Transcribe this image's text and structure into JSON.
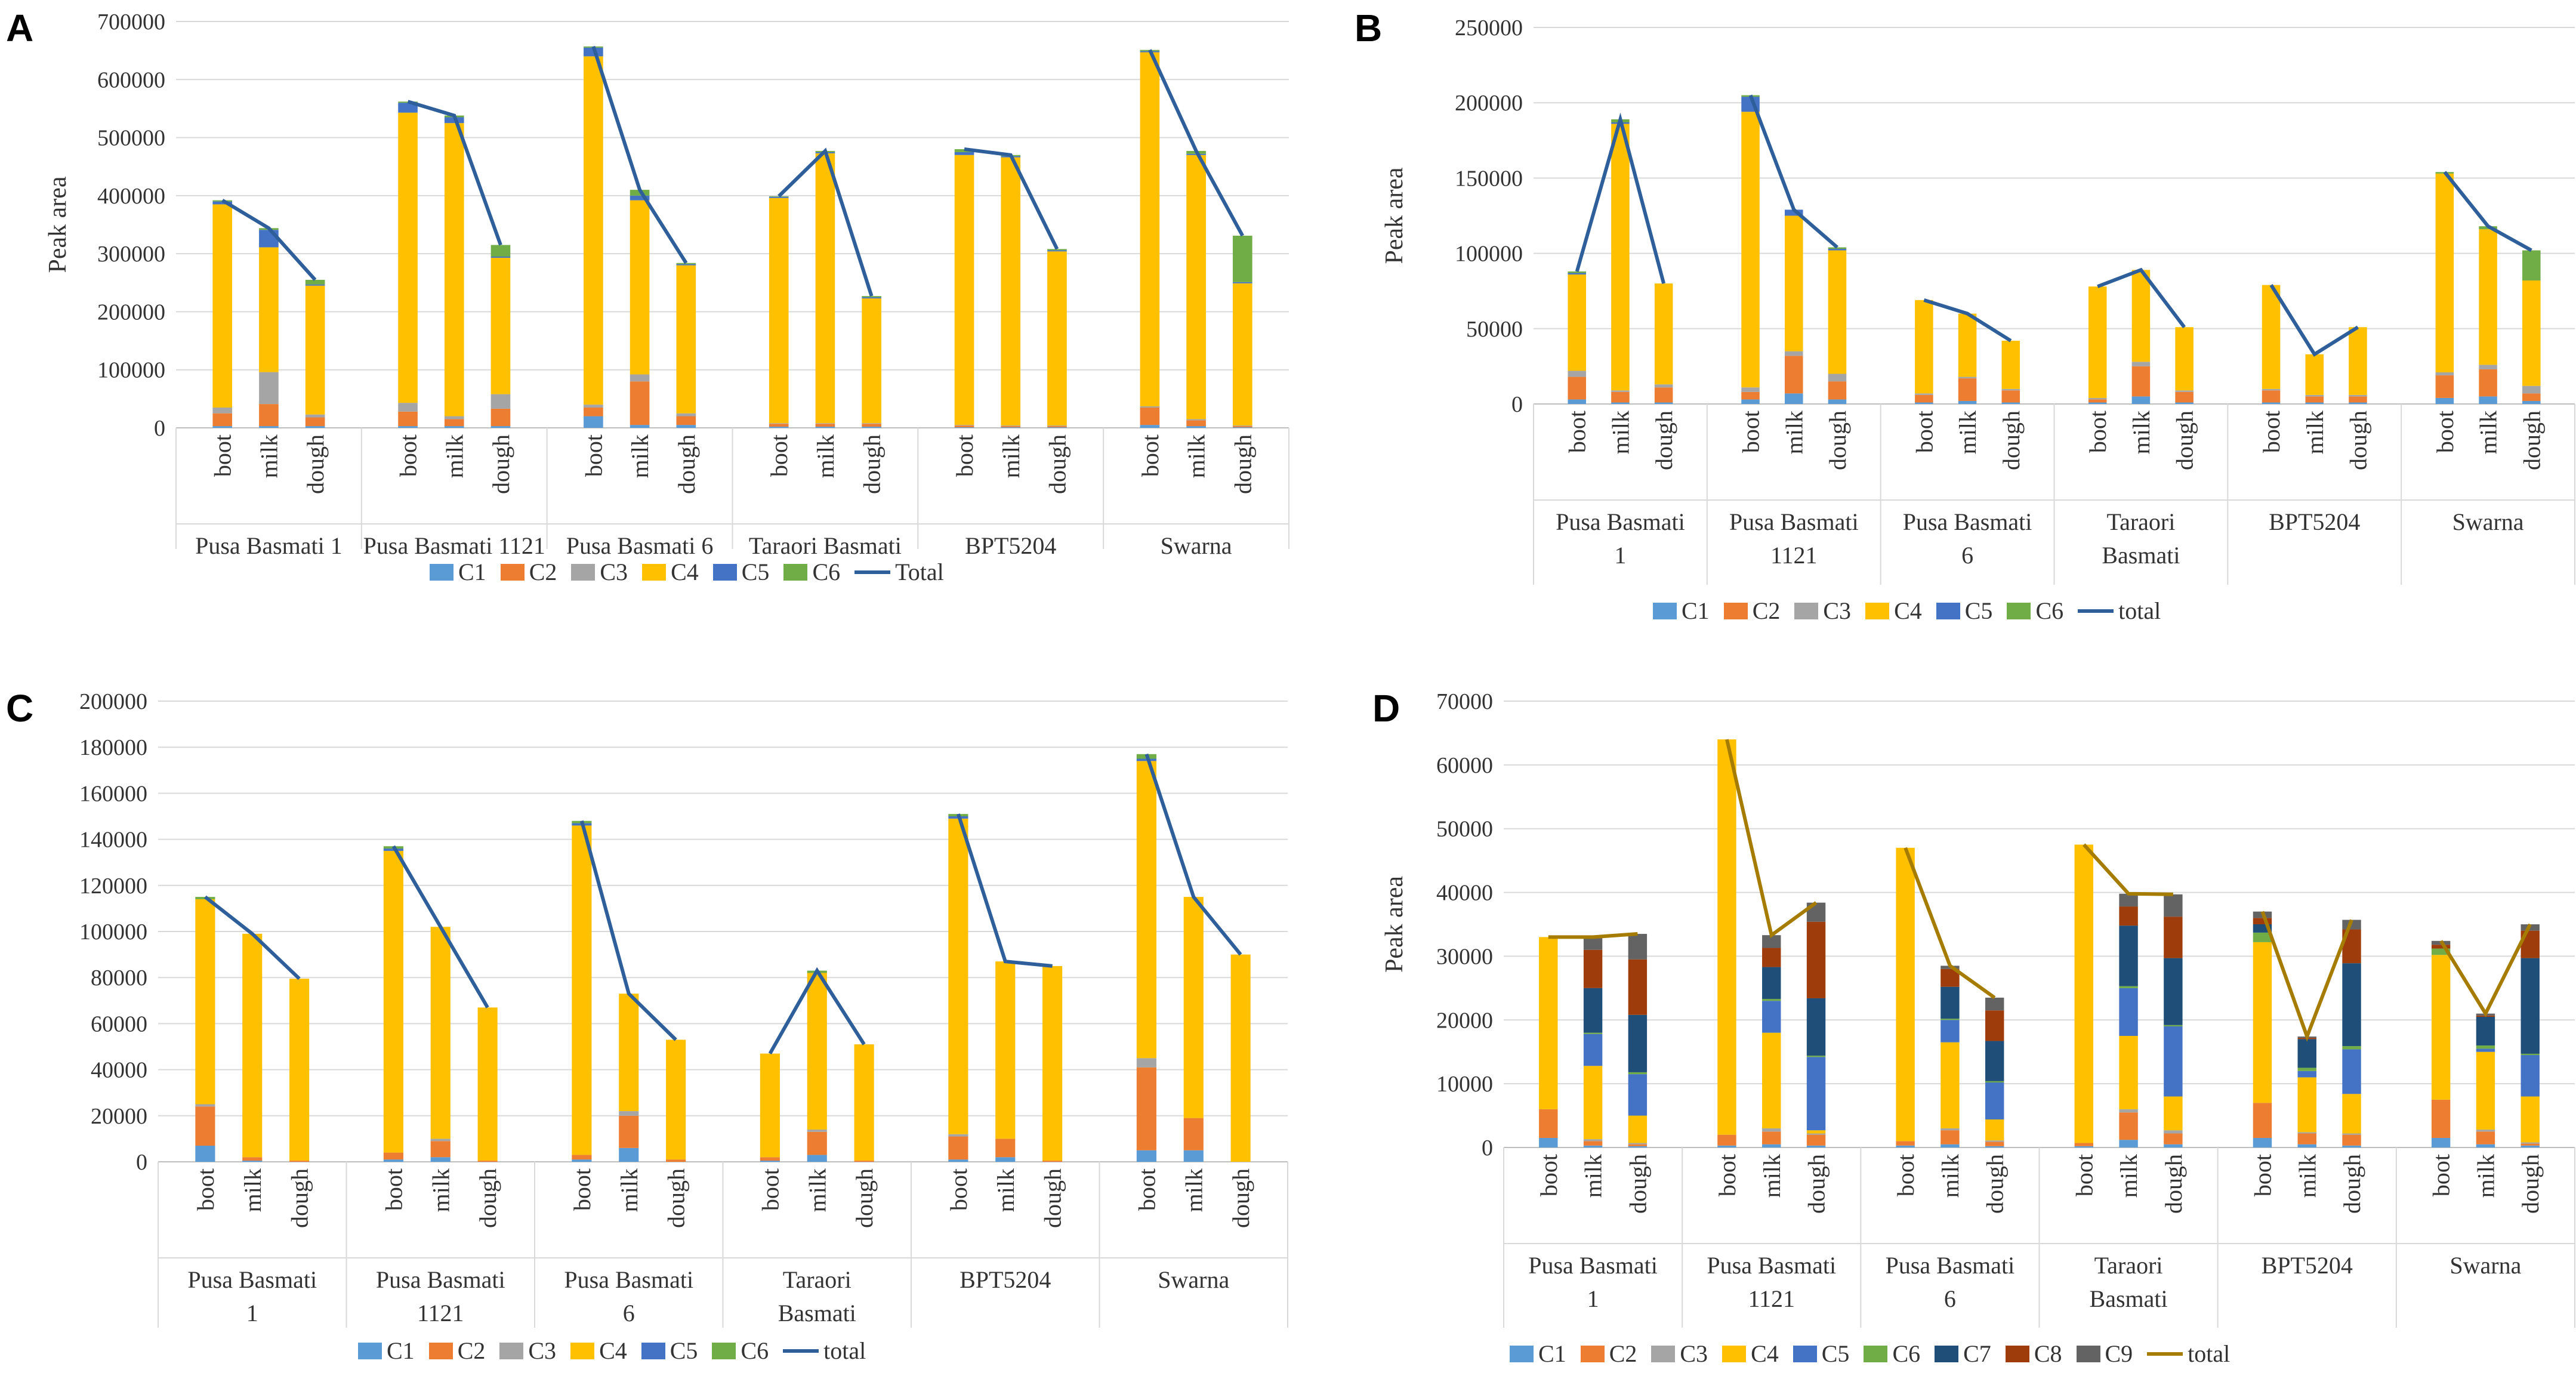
{
  "colors": {
    "C1": "#5b9bd5",
    "C2": "#ed7d31",
    "C3": "#a5a5a5",
    "C4": "#ffc000",
    "C5": "#4472c4",
    "C6": "#70ad47",
    "C7": "#1f4e79",
    "C8": "#9e3c0c",
    "C9": "#636363",
    "total_blue": "#2e5f9a",
    "total_gold": "#a67c00"
  },
  "chart_data": [
    {
      "panel": "A",
      "type": "bar",
      "stacked": true,
      "ylabel": "Peak area",
      "ylim": [
        0,
        700000
      ],
      "ystep": 100000,
      "stages": [
        "boot",
        "milk",
        "dough"
      ],
      "groups": [
        "Pusa Basmati 1",
        "Pusa Basmati 1121",
        "Pusa Basmati 6",
        "Taraori Basmati",
        "BPT5204",
        "Swarna"
      ],
      "total_label": "Total",
      "total_color_key": "total_blue",
      "series": [
        {
          "name": "C1",
          "values": [
            [
              3000,
              3000,
              3000
            ],
            [
              3000,
              3000,
              3000
            ],
            [
              20000,
              5000,
              5000
            ],
            [
              2000,
              2000,
              2000
            ],
            [
              1000,
              1000,
              1000
            ],
            [
              5000,
              3000,
              1000
            ]
          ]
        },
        {
          "name": "C2",
          "values": [
            [
              22000,
              38000,
              15000
            ],
            [
              25000,
              12000,
              30000
            ],
            [
              15000,
              75000,
              15000
            ],
            [
              5000,
              5000,
              5000
            ],
            [
              3000,
              2000,
              2000
            ],
            [
              30000,
              10000,
              2000
            ]
          ]
        },
        {
          "name": "C3",
          "values": [
            [
              10000,
              55000,
              5000
            ],
            [
              15000,
              5000,
              25000
            ],
            [
              5000,
              12000,
              5000
            ],
            [
              1000,
              1000,
              1000
            ],
            [
              1000,
              1000,
              1000
            ],
            [
              2000,
              2000,
              1000
            ]
          ]
        },
        {
          "name": "C4",
          "values": [
            [
              350000,
              215000,
              222000
            ],
            [
              500000,
              505000,
              235000
            ],
            [
              600000,
              300000,
              255000
            ],
            [
              388000,
              465000,
              215000
            ],
            [
              465000,
              462000,
              300000
            ],
            [
              610000,
              455000,
              245000
            ]
          ]
        },
        {
          "name": "C5",
          "values": [
            [
              5000,
              30000,
              2000
            ],
            [
              17000,
              10000,
              2000
            ],
            [
              15000,
              8000,
              2000
            ],
            [
              2000,
              2000,
              2000
            ],
            [
              5000,
              2000,
              2000
            ],
            [
              2000,
              2000,
              2000
            ]
          ]
        },
        {
          "name": "C6",
          "values": [
            [
              2000,
              3000,
              8000
            ],
            [
              2000,
              3000,
              20000
            ],
            [
              2000,
              10000,
              2000
            ],
            [
              1000,
              2000,
              2000
            ],
            [
              5000,
              2000,
              2000
            ],
            [
              2000,
              5000,
              80000
            ]
          ]
        }
      ]
    },
    {
      "panel": "B",
      "type": "bar",
      "stacked": true,
      "ylabel": "Peak area",
      "ylim": [
        0,
        250000
      ],
      "ystep": 50000,
      "stages": [
        "boot",
        "milk",
        "dough"
      ],
      "groups": [
        "Pusa Basmati 1",
        "Pusa Basmati 1121",
        "Pusa Basmati 6",
        "Taraori Basmati",
        "BPT5204",
        "Swarna"
      ],
      "total_label": "total",
      "total_color_key": "total_blue",
      "series": [
        {
          "name": "C1",
          "values": [
            [
              3000,
              1000,
              1000
            ],
            [
              3000,
              7000,
              3000
            ],
            [
              1000,
              2000,
              1000
            ],
            [
              1000,
              5000,
              1000
            ],
            [
              1000,
              1000,
              1000
            ],
            [
              4000,
              5000,
              2000
            ]
          ]
        },
        {
          "name": "C2",
          "values": [
            [
              15000,
              7000,
              10000
            ],
            [
              5000,
              25000,
              12000
            ],
            [
              5000,
              15000,
              8000
            ],
            [
              2000,
              20000,
              7000
            ],
            [
              8000,
              4000,
              4000
            ],
            [
              15000,
              18000,
              5000
            ]
          ]
        },
        {
          "name": "C3",
          "values": [
            [
              4000,
              1000,
              2000
            ],
            [
              3000,
              3000,
              5000
            ],
            [
              1000,
              1000,
              1000
            ],
            [
              1000,
              3000,
              1000
            ],
            [
              1000,
              1000,
              1000
            ],
            [
              2000,
              3000,
              5000
            ]
          ]
        },
        {
          "name": "C4",
          "values": [
            [
              64000,
              177000,
              67000
            ],
            [
              183000,
              90000,
              82000
            ],
            [
              62000,
              42000,
              32000
            ],
            [
              74000,
              61000,
              42000
            ],
            [
              69000,
              27000,
              45000
            ],
            [
              132000,
              90000,
              70000
            ]
          ]
        },
        {
          "name": "C5",
          "values": [
            [
              1000,
              1000,
              0
            ],
            [
              10000,
              4000,
              1000
            ],
            [
              0,
              0,
              0
            ],
            [
              0,
              0,
              0
            ],
            [
              0,
              0,
              0
            ],
            [
              0,
              0,
              0
            ]
          ]
        },
        {
          "name": "C6",
          "values": [
            [
              1000,
              2000,
              0
            ],
            [
              1000,
              0,
              1000
            ],
            [
              0,
              0,
              0
            ],
            [
              0,
              0,
              0
            ],
            [
              0,
              0,
              0
            ],
            [
              1000,
              2000,
              20000
            ]
          ]
        }
      ]
    },
    {
      "panel": "C",
      "type": "bar",
      "stacked": true,
      "ylabel": "",
      "ylim": [
        0,
        200000
      ],
      "ystep": 20000,
      "stages": [
        "boot",
        "milk",
        "dough"
      ],
      "groups": [
        "Pusa Basmati 1",
        "Pusa Basmati 1121",
        "Pusa Basmati 6",
        "Taraori Basmati",
        "BPT5204",
        "Swarna"
      ],
      "total_label": "total",
      "total_color_key": "total_blue",
      "series": [
        {
          "name": "C1",
          "values": [
            [
              7000,
              500,
              0
            ],
            [
              1000,
              2000,
              0
            ],
            [
              1000,
              6000,
              0
            ],
            [
              500,
              3000,
              0
            ],
            [
              1000,
              2000,
              0
            ],
            [
              5000,
              5000,
              0
            ]
          ]
        },
        {
          "name": "C2",
          "values": [
            [
              17000,
              1500,
              500
            ],
            [
              3000,
              7000,
              500
            ],
            [
              2000,
              14000,
              1000
            ],
            [
              1500,
              10000,
              500
            ],
            [
              10000,
              8000,
              500
            ],
            [
              36000,
              14000,
              0
            ]
          ]
        },
        {
          "name": "C3",
          "values": [
            [
              1000,
              0,
              0
            ],
            [
              0,
              1000,
              0
            ],
            [
              0,
              2000,
              0
            ],
            [
              0,
              1000,
              0
            ],
            [
              1000,
              0,
              0
            ],
            [
              4000,
              0,
              0
            ]
          ]
        },
        {
          "name": "C4",
          "values": [
            [
              89000,
              97000,
              79000
            ],
            [
              131000,
              92000,
              66500
            ],
            [
              143000,
              51000,
              52000
            ],
            [
              45000,
              68000,
              50500
            ],
            [
              137000,
              77000,
              84500
            ],
            [
              129000,
              96000,
              90000
            ]
          ]
        },
        {
          "name": "C5",
          "values": [
            [
              0,
              0,
              0
            ],
            [
              1000,
              0,
              0
            ],
            [
              1000,
              0,
              0
            ],
            [
              0,
              0,
              0
            ],
            [
              1000,
              0,
              0
            ],
            [
              1000,
              0,
              0
            ]
          ]
        },
        {
          "name": "C6",
          "values": [
            [
              1000,
              0,
              0
            ],
            [
              1000,
              0,
              0
            ],
            [
              1000,
              0,
              0
            ],
            [
              0,
              1000,
              0
            ],
            [
              1000,
              0,
              0
            ],
            [
              2000,
              0,
              0
            ]
          ]
        }
      ]
    },
    {
      "panel": "D",
      "type": "bar",
      "stacked": true,
      "ylabel": "Peak area",
      "ylim": [
        0,
        70000
      ],
      "ystep": 10000,
      "stages": [
        "boot",
        "milk",
        "dough"
      ],
      "groups": [
        "Pusa Basmati 1",
        "Pusa Basmati 1121",
        "Pusa Basmati 6",
        "Taraori Basmati",
        "BPT5204",
        "Swarna"
      ],
      "total_label": "total",
      "total_color_key": "total_gold",
      "series": [
        {
          "name": "C1",
          "values": [
            [
              1500,
              300,
              200
            ],
            [
              300,
              500,
              300
            ],
            [
              300,
              500,
              200
            ],
            [
              200,
              1200,
              500
            ],
            [
              1500,
              500,
              300
            ],
            [
              1500,
              500,
              300
            ]
          ]
        },
        {
          "name": "C2",
          "values": [
            [
              4500,
              700,
              300
            ],
            [
              1700,
              2000,
              1700
            ],
            [
              700,
              2200,
              700
            ],
            [
              500,
              4300,
              1700
            ],
            [
              5500,
              1700,
              1700
            ],
            [
              6000,
              2000,
              300
            ]
          ]
        },
        {
          "name": "C3",
          "values": [
            [
              0,
              300,
              200
            ],
            [
              0,
              500,
              200
            ],
            [
              0,
              300,
              200
            ],
            [
              0,
              500,
              500
            ],
            [
              0,
              200,
              200
            ],
            [
              0,
              300,
              200
            ]
          ]
        },
        {
          "name": "C4",
          "values": [
            [
              27000,
              11500,
              4300
            ],
            [
              62000,
              15000,
              500
            ],
            [
              46000,
              13500,
              3300
            ],
            [
              46800,
              11500,
              5300
            ],
            [
              25200,
              8600,
              6200
            ],
            [
              22700,
              12200,
              7200
            ]
          ]
        },
        {
          "name": "C5",
          "values": [
            [
              0,
              5000,
              6500
            ],
            [
              0,
              5000,
              11500
            ],
            [
              0,
              3500,
              5800
            ],
            [
              0,
              7500,
              11000
            ],
            [
              0,
              1000,
              7000
            ],
            [
              0,
              500,
              6500
            ]
          ]
        },
        {
          "name": "C6",
          "values": [
            [
              0,
              200,
              300
            ],
            [
              0,
              300,
              200
            ],
            [
              0,
              200,
              200
            ],
            [
              0,
              300,
              200
            ],
            [
              1500,
              500,
              500
            ],
            [
              1000,
              500,
              200
            ]
          ]
        },
        {
          "name": "C7",
          "values": [
            [
              0,
              7000,
              9000
            ],
            [
              0,
              5000,
              9000
            ],
            [
              0,
              5000,
              6300
            ],
            [
              0,
              9500,
              10500
            ],
            [
              1300,
              4500,
              13000
            ],
            [
              0,
              4500,
              15000
            ]
          ]
        },
        {
          "name": "C8",
          "values": [
            [
              0,
              6000,
              8700
            ],
            [
              0,
              3000,
              12000
            ],
            [
              0,
              2800,
              4800
            ],
            [
              0,
              3000,
              6500
            ],
            [
              1000,
              200,
              5300
            ],
            [
              600,
              200,
              4300
            ]
          ]
        },
        {
          "name": "C9",
          "values": [
            [
              0,
              2000,
              4000
            ],
            [
              0,
              2000,
              3000
            ],
            [
              0,
              500,
              2000
            ],
            [
              0,
              2000,
              3500
            ],
            [
              1000,
              200,
              1500
            ],
            [
              600,
              300,
              1000
            ]
          ]
        }
      ]
    }
  ]
}
